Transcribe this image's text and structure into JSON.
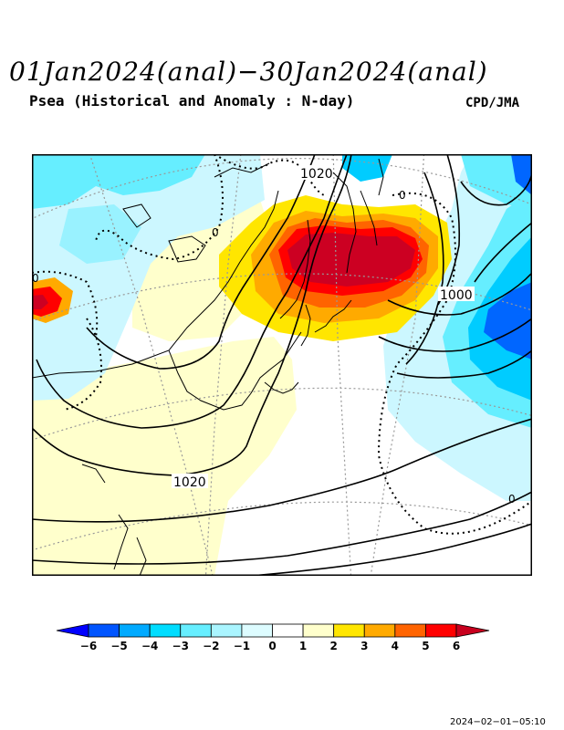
{
  "header": {
    "title": "01Jan2024(anal)−30Jan2024(anal)",
    "subtitle": "Psea (Historical and Anomaly : N-day)",
    "credit": "CPD/JMA"
  },
  "map": {
    "contour_labels": [
      {
        "text": "1020"
      },
      {
        "text": "1000"
      },
      {
        "text": "1020"
      },
      {
        "text": "0"
      },
      {
        "text": "0"
      },
      {
        "text": "0"
      },
      {
        "text": "0"
      }
    ],
    "colors": {
      "strong_negative": "#0050ff",
      "negative": "#00b4ff",
      "weak_negative": "#b4f5ff",
      "near_zero": "#ffffff",
      "weak_positive": "#ffffc8",
      "positive": "#ffdc00",
      "strong_positive": "#dc0000"
    }
  },
  "colorbar": {
    "ticks": [
      "−6",
      "−5",
      "−4",
      "−3",
      "−2",
      "−1",
      "0",
      "1",
      "2",
      "3",
      "4",
      "5",
      "6"
    ],
    "colors": [
      "#0000ff",
      "#0055ff",
      "#00aaff",
      "#00ddff",
      "#66eeff",
      "#aaf5ff",
      "#ddfcff",
      "#ffffff",
      "#ffffcc",
      "#ffe600",
      "#ffaa00",
      "#ff6400",
      "#ff0000",
      "#c8001e"
    ]
  },
  "timestamp": "2024−02−01−05:10"
}
